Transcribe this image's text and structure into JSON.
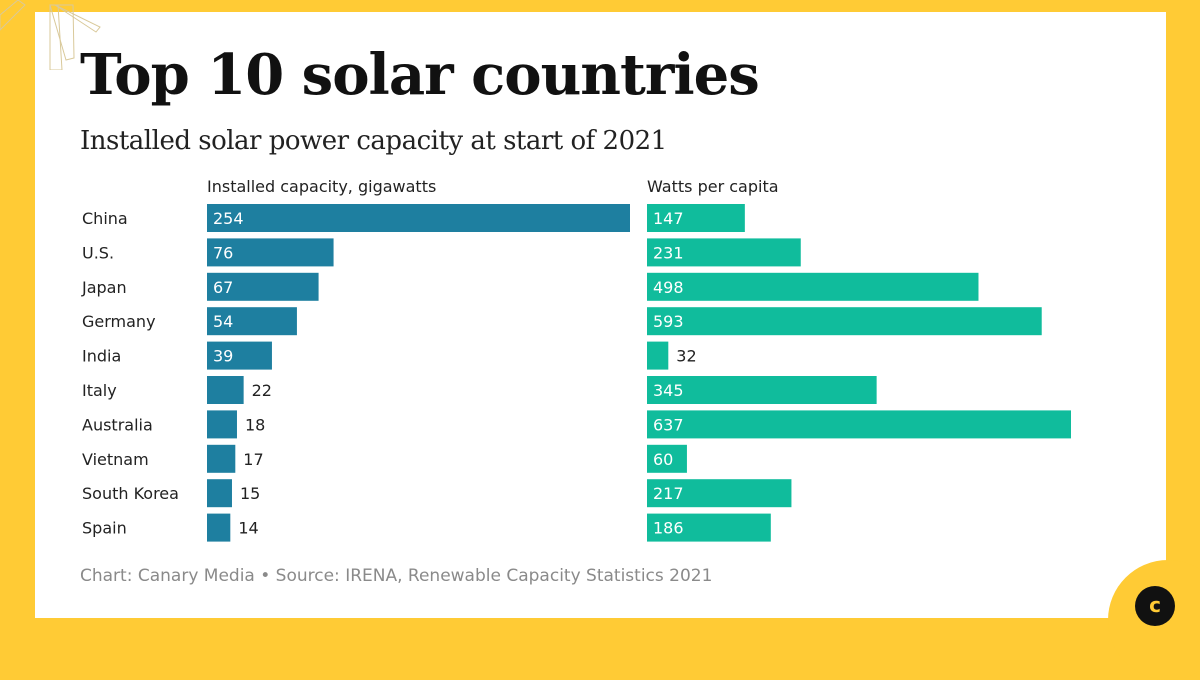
{
  "title": "Top 10 solar countries",
  "subtitle": "Installed solar power capacity at start of 2021",
  "footer": "Chart: Canary Media • Source: IRENA, Renewable Capacity Statistics 2021",
  "logo_letter": "c",
  "colors": {
    "background": "#FFCB35",
    "capacity_bar": "#1E7FA0",
    "per_capita_bar": "#10BC9C"
  },
  "chart_data": [
    {
      "type": "bar",
      "orientation": "horizontal",
      "title": "Installed capacity, gigawatts",
      "categories": [
        "China",
        "U.S.",
        "Japan",
        "Germany",
        "India",
        "Italy",
        "Australia",
        "Vietnam",
        "South Korea",
        "Spain"
      ],
      "values": [
        254,
        76,
        67,
        54,
        39,
        22,
        18,
        17,
        15,
        14
      ]
    },
    {
      "type": "bar",
      "orientation": "horizontal",
      "title": "Watts per capita",
      "categories": [
        "China",
        "U.S.",
        "Japan",
        "Germany",
        "India",
        "Italy",
        "Australia",
        "Vietnam",
        "South Korea",
        "Spain"
      ],
      "values": [
        147,
        231,
        498,
        593,
        32,
        345,
        637,
        60,
        217,
        186
      ]
    }
  ]
}
